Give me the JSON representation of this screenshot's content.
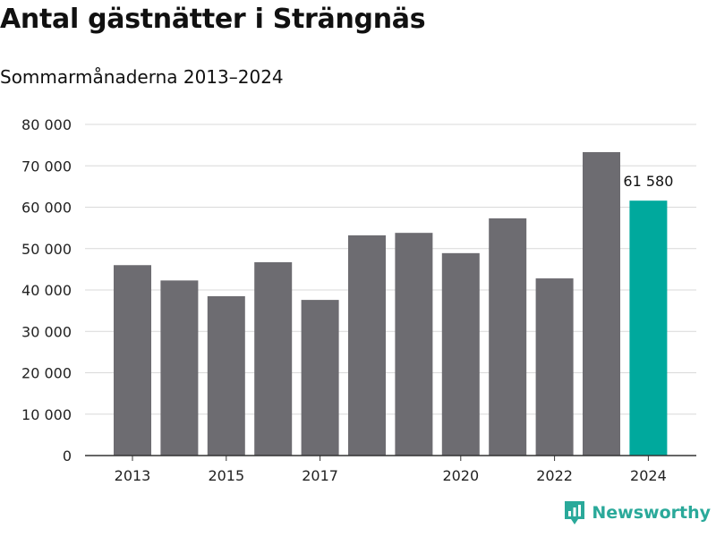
{
  "title": "Antal gästnätter i Strängnäs",
  "subtitle": "Sommarmånaderna 2013–2024",
  "brand": {
    "name": "Newsworthy",
    "color": "#2aa99a"
  },
  "colors": {
    "default_bar": "#6d6c71",
    "highlight_bar": "#00a99d",
    "grid": "#d9d9d9",
    "axis": "#333333"
  },
  "chart_data": {
    "type": "bar",
    "categories": [
      "2013",
      "2014",
      "2015",
      "2016",
      "2017",
      "2018",
      "2019",
      "2020",
      "2021",
      "2022",
      "2023",
      "2024"
    ],
    "x_tick_labels": [
      "2013",
      "2015",
      "2017",
      "2020",
      "2022",
      "2024"
    ],
    "values": [
      46000,
      42300,
      38500,
      46700,
      37600,
      53200,
      53800,
      48900,
      57300,
      42800,
      73300,
      61580
    ],
    "highlight_index": 11,
    "data_labels": [
      {
        "category": "2024",
        "text": "61 580"
      }
    ],
    "ylim": [
      0,
      80000
    ],
    "y_ticks": [
      0,
      10000,
      20000,
      30000,
      40000,
      50000,
      60000,
      70000,
      80000
    ],
    "y_tick_labels": [
      "0",
      "10 000",
      "20 000",
      "30 000",
      "40 000",
      "50 000",
      "60 000",
      "70 000",
      "80 000"
    ],
    "grid": true,
    "xlabel": "",
    "ylabel": ""
  }
}
